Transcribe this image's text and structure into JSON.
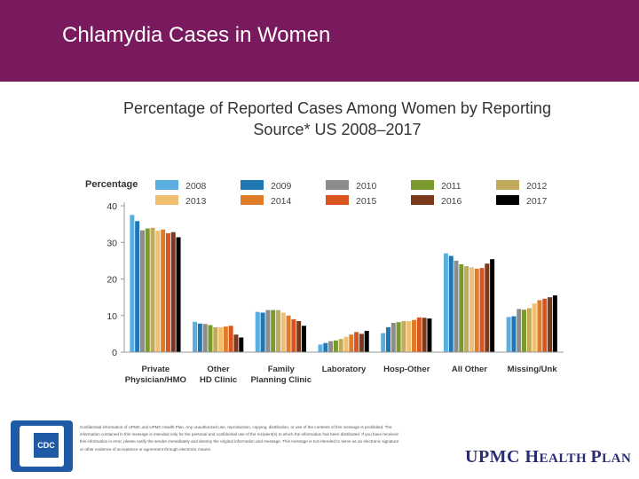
{
  "header": {
    "title": "Chlamydia Cases in Women"
  },
  "chart_data": {
    "type": "bar",
    "title": "Percentage of Reported Cases Among Women by Reporting Source* US 2008–2017",
    "ylabel": "Percentage",
    "xlabel": "",
    "ylim": [
      0,
      40
    ],
    "yticks": [
      0,
      10,
      20,
      30,
      40
    ],
    "grid": false,
    "legend": "top",
    "categories": [
      [
        "Private",
        "Physician/HMO"
      ],
      [
        "Other",
        "HD Clinic"
      ],
      [
        "Family",
        "Planning Clinic"
      ],
      [
        "Laboratory"
      ],
      [
        "Hosp-Other"
      ],
      [
        "All Other"
      ],
      [
        "Missing/Unk"
      ]
    ],
    "series": [
      {
        "name": "2008",
        "color": "#5aaee0",
        "values": [
          37.5,
          8.3,
          11.0,
          2.1,
          5.2,
          27.0,
          9.6
        ]
      },
      {
        "name": "2009",
        "color": "#1f78b4",
        "values": [
          35.8,
          7.8,
          10.8,
          2.5,
          6.8,
          26.3,
          9.8
        ]
      },
      {
        "name": "2010",
        "color": "#8c8c8c",
        "values": [
          33.3,
          7.7,
          11.5,
          3.0,
          8.0,
          25.0,
          11.8
        ]
      },
      {
        "name": "2011",
        "color": "#7a9a2e",
        "values": [
          33.8,
          7.4,
          11.5,
          3.2,
          8.2,
          24.0,
          11.6
        ]
      },
      {
        "name": "2012",
        "color": "#c2aa5c",
        "values": [
          34.0,
          6.8,
          11.5,
          3.6,
          8.5,
          23.5,
          12.0
        ]
      },
      {
        "name": "2013",
        "color": "#f0c070",
        "values": [
          33.2,
          6.8,
          10.8,
          4.2,
          8.5,
          23.2,
          13.3
        ]
      },
      {
        "name": "2014",
        "color": "#e07b28",
        "values": [
          33.5,
          7.0,
          10.0,
          4.8,
          8.8,
          22.8,
          14.2
        ]
      },
      {
        "name": "2015",
        "color": "#d9541e",
        "values": [
          32.5,
          7.2,
          9.0,
          5.5,
          9.5,
          23.0,
          14.6
        ]
      },
      {
        "name": "2016",
        "color": "#7b3a1c",
        "values": [
          32.8,
          4.8,
          8.5,
          5.0,
          9.4,
          24.2,
          15.0
        ]
      },
      {
        "name": "2017",
        "color": "#000000",
        "values": [
          31.4,
          4.0,
          7.2,
          5.8,
          9.2,
          25.4,
          15.5
        ]
      }
    ]
  },
  "footer": {
    "logo_text": "CDC",
    "disclaimer": "Confidential information of UPMC and UPMC Health Plan. Any unauthorized use, reproduction, copying, distribution, or use of the contents of this message is prohibited. The information contained in this message is intended only for the personal and confidential use of the recipient(s) to which the information has been distributed. If you have received this information in error, please notify the sender immediately and destroy the original information and message. This message is not intended to serve as an electronic signature or other evidence of acceptance or agreement through electronic means.",
    "brand_part1": "UPMC H",
    "brand_part2": "EALTH ",
    "brand_part3": "P",
    "brand_part4": "LAN"
  }
}
